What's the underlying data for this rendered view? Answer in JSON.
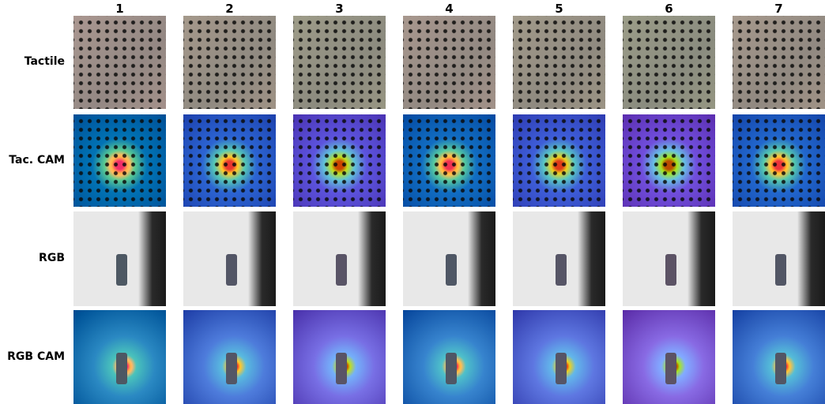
{
  "header": {
    "columns": [
      "1",
      "2",
      "3",
      "4",
      "5",
      "6",
      "7"
    ]
  },
  "rows": [
    {
      "label": "Tactile"
    },
    {
      "label": "Tac. CAM"
    },
    {
      "label": "RGB"
    },
    {
      "label": "RGB CAM"
    }
  ]
}
